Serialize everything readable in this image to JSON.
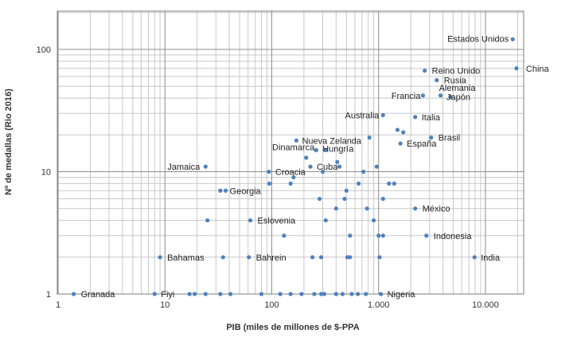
{
  "chart_data": {
    "type": "scatter",
    "title": "",
    "xlabel": "PIB (miles de millones de $-PPA",
    "ylabel": "Nº de medallas (Rio 2016)",
    "x_scale": "log",
    "y_scale": "log",
    "xlim": [
      1,
      20000
    ],
    "ylim": [
      1,
      200
    ],
    "x_ticks": [
      1,
      10,
      100,
      1000,
      10000
    ],
    "x_tick_labels": [
      "1",
      "10",
      "100",
      "1.000",
      "10.000"
    ],
    "y_ticks": [
      1,
      10,
      100
    ],
    "y_tick_labels": [
      "1",
      "10",
      "100"
    ],
    "grid": true,
    "point_color": "#4f81bd",
    "labeled_points": [
      {
        "name": "Estados Unidos",
        "x": 18000,
        "y": 121
      },
      {
        "name": "China",
        "x": 19500,
        "y": 70
      },
      {
        "name": "Reino Unido",
        "x": 2700,
        "y": 67
      },
      {
        "name": "Rusia",
        "x": 3500,
        "y": 56
      },
      {
        "name": "Alemania",
        "x": 3800,
        "y": 42
      },
      {
        "name": "Francia",
        "x": 2600,
        "y": 42
      },
      {
        "name": "Japón",
        "x": 4700,
        "y": 41
      },
      {
        "name": "Australia",
        "x": 1100,
        "y": 29
      },
      {
        "name": "Italia",
        "x": 2200,
        "y": 28
      },
      {
        "name": "Brasil",
        "x": 3100,
        "y": 19
      },
      {
        "name": "España",
        "x": 1600,
        "y": 17
      },
      {
        "name": "Nueva Zelanda",
        "x": 170,
        "y": 18
      },
      {
        "name": "Dinamarca",
        "x": 260,
        "y": 15
      },
      {
        "name": "Hungría",
        "x": 260,
        "y": 15
      },
      {
        "name": "Jamaica",
        "x": 24,
        "y": 11
      },
      {
        "name": "Croacia",
        "x": 94,
        "y": 10
      },
      {
        "name": "Cuba",
        "x": 230,
        "y": 11
      },
      {
        "name": "Georgia",
        "x": 37,
        "y": 7
      },
      {
        "name": "Eslovenia",
        "x": 63,
        "y": 4
      },
      {
        "name": "México",
        "x": 2200,
        "y": 5
      },
      {
        "name": "Indonesia",
        "x": 2800,
        "y": 3
      },
      {
        "name": "Bahamas",
        "x": 9,
        "y": 2
      },
      {
        "name": "Bahrein",
        "x": 61,
        "y": 2
      },
      {
        "name": "India",
        "x": 7900,
        "y": 2
      },
      {
        "name": "Granada",
        "x": 1.4,
        "y": 1
      },
      {
        "name": "Fiyi",
        "x": 8,
        "y": 1
      },
      {
        "name": "Nigeria",
        "x": 1050,
        "y": 1
      }
    ],
    "other_points": [
      {
        "x": 1700,
        "y": 21
      },
      {
        "x": 1500,
        "y": 22
      },
      {
        "x": 820,
        "y": 19
      },
      {
        "x": 210,
        "y": 13
      },
      {
        "x": 320,
        "y": 15
      },
      {
        "x": 430,
        "y": 11
      },
      {
        "x": 410,
        "y": 12
      },
      {
        "x": 300,
        "y": 10
      },
      {
        "x": 960,
        "y": 11
      },
      {
        "x": 720,
        "y": 10
      },
      {
        "x": 160,
        "y": 9
      },
      {
        "x": 150,
        "y": 8
      },
      {
        "x": 1400,
        "y": 8
      },
      {
        "x": 1250,
        "y": 8
      },
      {
        "x": 650,
        "y": 8
      },
      {
        "x": 1100,
        "y": 6
      },
      {
        "x": 95,
        "y": 8
      },
      {
        "x": 33,
        "y": 7
      },
      {
        "x": 500,
        "y": 7
      },
      {
        "x": 280,
        "y": 6
      },
      {
        "x": 480,
        "y": 6
      },
      {
        "x": 780,
        "y": 5
      },
      {
        "x": 400,
        "y": 5
      },
      {
        "x": 25,
        "y": 4
      },
      {
        "x": 320,
        "y": 4
      },
      {
        "x": 900,
        "y": 4
      },
      {
        "x": 130,
        "y": 3
      },
      {
        "x": 540,
        "y": 3
      },
      {
        "x": 1000,
        "y": 3
      },
      {
        "x": 1100,
        "y": 3
      },
      {
        "x": 35,
        "y": 2
      },
      {
        "x": 240,
        "y": 2
      },
      {
        "x": 290,
        "y": 2
      },
      {
        "x": 510,
        "y": 2
      },
      {
        "x": 540,
        "y": 2
      },
      {
        "x": 1020,
        "y": 2
      },
      {
        "x": 17,
        "y": 1
      },
      {
        "x": 19,
        "y": 1
      },
      {
        "x": 24,
        "y": 1
      },
      {
        "x": 33,
        "y": 1
      },
      {
        "x": 41,
        "y": 1
      },
      {
        "x": 80,
        "y": 1
      },
      {
        "x": 120,
        "y": 1
      },
      {
        "x": 150,
        "y": 1
      },
      {
        "x": 190,
        "y": 1
      },
      {
        "x": 250,
        "y": 1
      },
      {
        "x": 290,
        "y": 1
      },
      {
        "x": 310,
        "y": 1
      },
      {
        "x": 400,
        "y": 1
      },
      {
        "x": 460,
        "y": 1
      },
      {
        "x": 560,
        "y": 1
      },
      {
        "x": 640,
        "y": 1
      },
      {
        "x": 760,
        "y": 1
      }
    ]
  }
}
